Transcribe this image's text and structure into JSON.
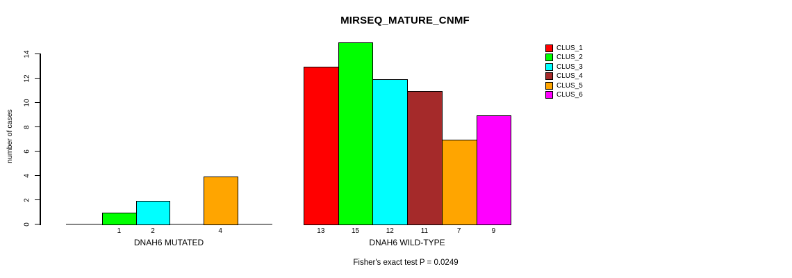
{
  "title": "MIRSEQ_MATURE_CNMF",
  "chart_data": {
    "type": "bar",
    "title": "MIRSEQ_MATURE_CNMF",
    "ylabel": "number of cases",
    "ylim": [
      0,
      15
    ],
    "yticks": [
      0,
      2,
      4,
      6,
      8,
      10,
      12,
      14
    ],
    "grid": false,
    "legend_position": "top-right",
    "legend": [
      {
        "label": "CLUS_1",
        "color": "#FF0000"
      },
      {
        "label": "CLUS_2",
        "color": "#00FF00"
      },
      {
        "label": "CLUS_3",
        "color": "#00FFFF"
      },
      {
        "label": "CLUS_4",
        "color": "#A52A2A"
      },
      {
        "label": "CLUS_5",
        "color": "#FFA500"
      },
      {
        "label": "CLUS_6",
        "color": "#FF00FF"
      }
    ],
    "groups": [
      {
        "label": "DNAH6 MUTATED",
        "values": [
          0,
          1,
          2,
          0,
          4,
          0
        ]
      },
      {
        "label": "DNAH6 WILD-TYPE",
        "values": [
          13,
          15,
          12,
          11,
          7,
          9
        ]
      }
    ],
    "bar_label_rule": "value shown under each non-zero bar",
    "annotation": "Fisher's exact test P = 0.0249",
    "axis_color": "#000000",
    "background_color": "#FFFFFF"
  }
}
